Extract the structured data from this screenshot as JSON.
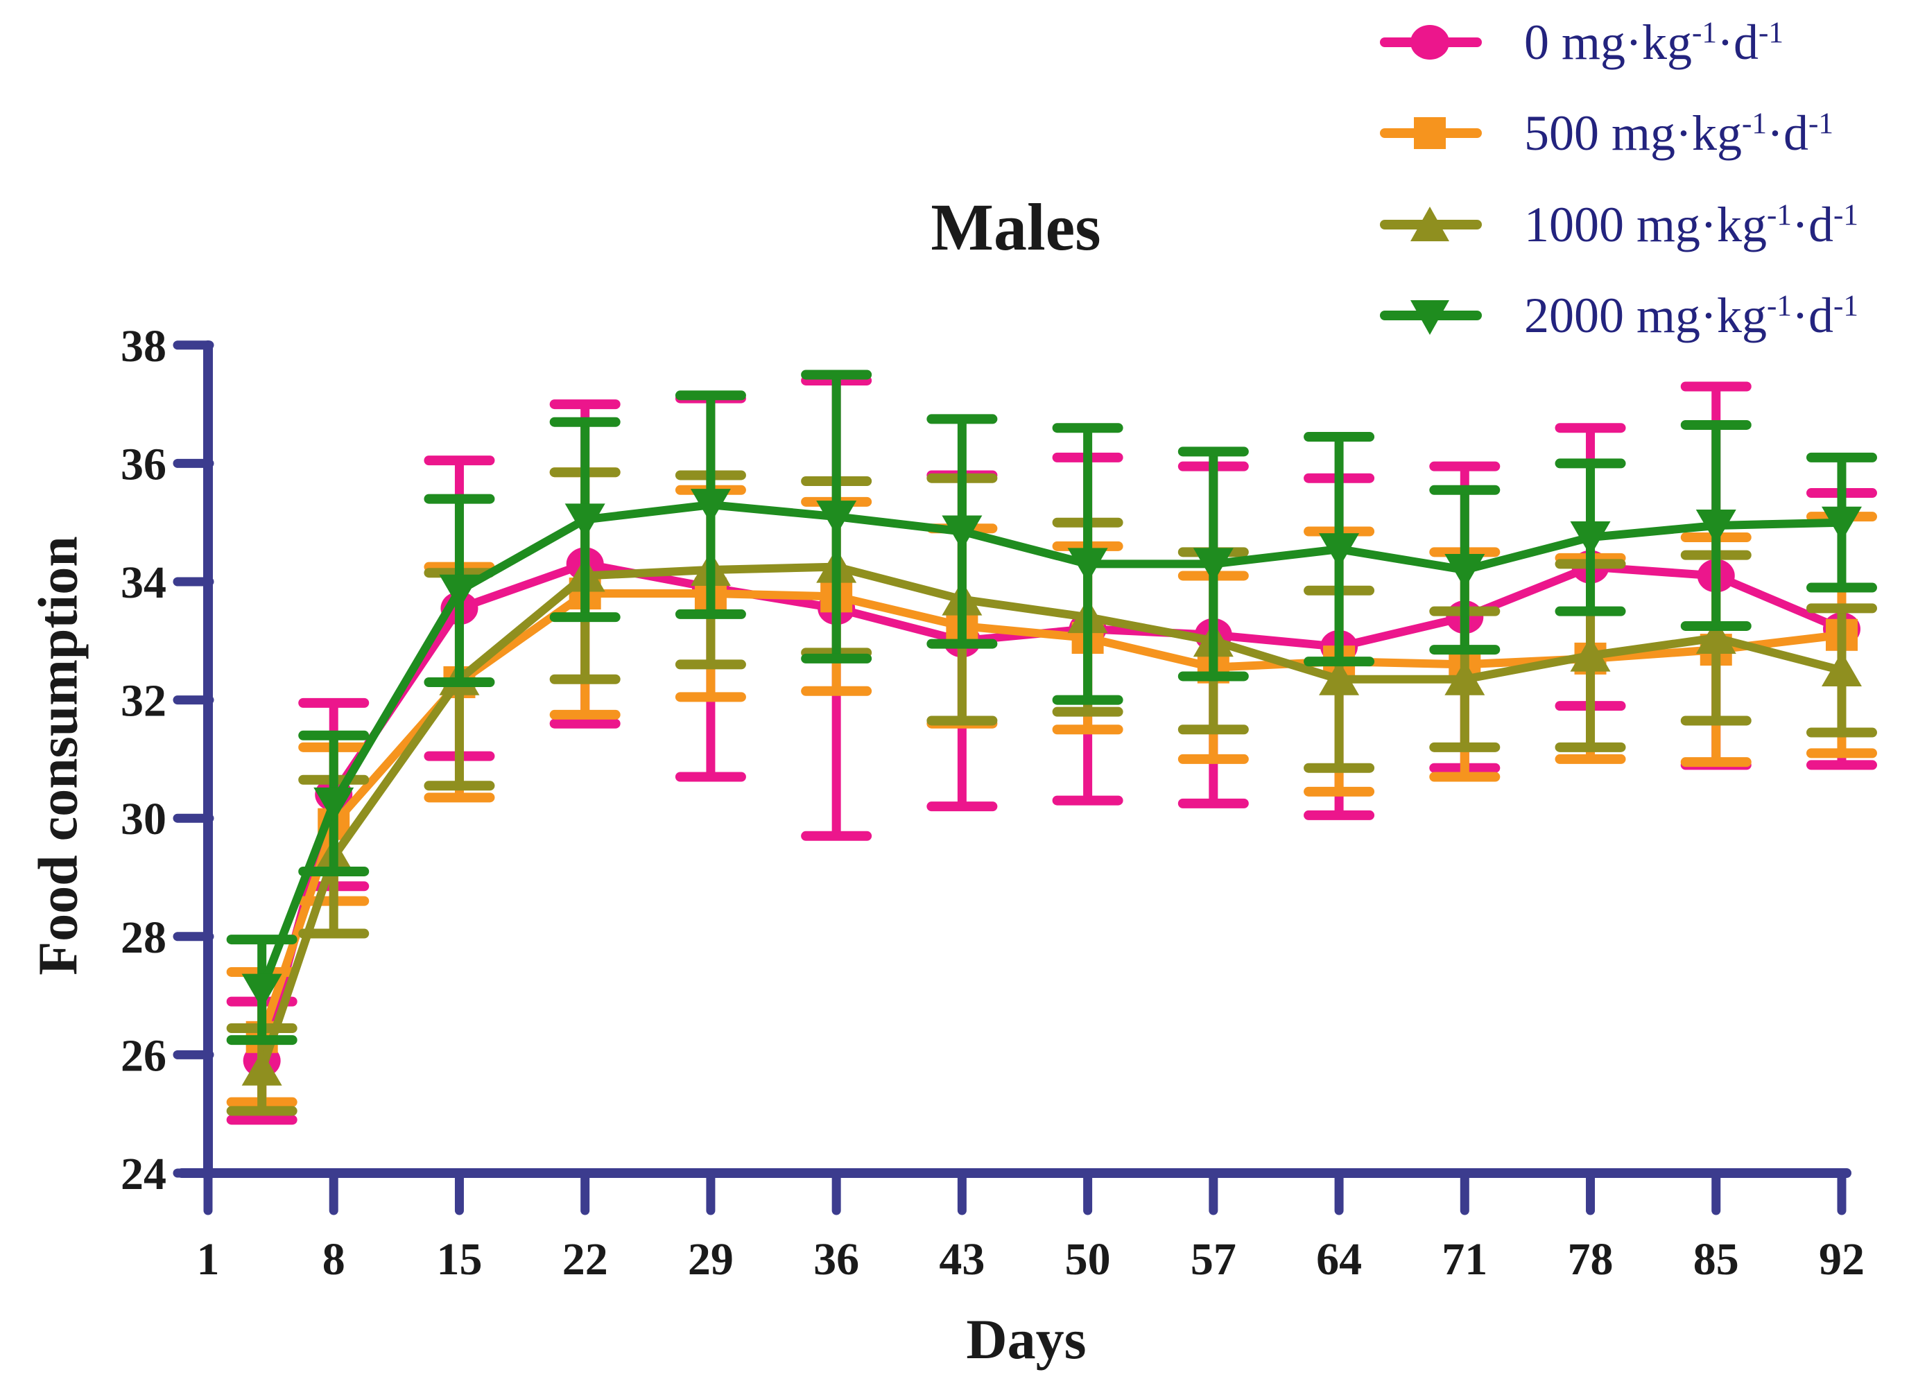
{
  "title": "Males",
  "colors": {
    "axis": "#3c3c8e",
    "tick_text": "#1a1a1a",
    "title_text": "#1a1a1a",
    "legend_text": "#23237e",
    "background": "#ffffff",
    "series_pink": "#ec168c",
    "series_orange": "#f6941e",
    "series_olive": "#8f8f1f",
    "series_green": "#1f8c1f"
  },
  "chart_data": {
    "type": "line",
    "title": "Males",
    "xlabel": "Days",
    "ylabel": "Food consumption",
    "x": [
      4,
      8,
      15,
      22,
      29,
      36,
      43,
      50,
      57,
      64,
      71,
      78,
      85,
      92
    ],
    "x_tick_labels": [
      1,
      8,
      15,
      22,
      29,
      36,
      43,
      50,
      57,
      64,
      71,
      78,
      85,
      92
    ],
    "y_ticks": [
      24,
      26,
      28,
      30,
      32,
      34,
      36,
      38
    ],
    "ylim": [
      24,
      38
    ],
    "xlim": [
      1,
      93
    ],
    "grid": false,
    "legend_position": "top-right",
    "error_bars": true,
    "series": [
      {
        "name": "0 mg·kg⁻¹·d⁻¹",
        "dose": "0",
        "marker": "circle",
        "color": "#ec168c",
        "values": [
          25.9,
          30.4,
          33.55,
          34.3,
          33.9,
          33.55,
          33.0,
          33.2,
          33.1,
          32.9,
          33.4,
          34.25,
          34.1,
          33.2
        ],
        "err": [
          1.0,
          1.55,
          2.5,
          2.7,
          3.2,
          3.85,
          2.8,
          2.9,
          2.85,
          2.85,
          2.55,
          2.35,
          3.2,
          2.3
        ]
      },
      {
        "name": "500 mg·kg⁻¹·d⁻¹",
        "dose": "500",
        "marker": "square",
        "color": "#f6941e",
        "values": [
          26.3,
          29.9,
          32.3,
          33.8,
          33.8,
          33.75,
          33.25,
          33.05,
          32.55,
          32.65,
          32.6,
          32.7,
          32.85,
          33.1
        ],
        "err": [
          1.1,
          1.3,
          1.95,
          2.05,
          1.75,
          1.6,
          1.65,
          1.55,
          1.55,
          2.2,
          1.9,
          1.7,
          1.9,
          2.0
        ]
      },
      {
        "name": "1000 mg·kg⁻¹·d⁻¹",
        "dose": "1000",
        "marker": "triangle-up",
        "color": "#8f8f1f",
        "values": [
          25.75,
          29.35,
          32.35,
          34.1,
          34.2,
          34.25,
          33.7,
          33.4,
          33.0,
          32.35,
          32.35,
          32.75,
          33.05,
          32.5
        ],
        "err": [
          0.7,
          1.3,
          1.8,
          1.75,
          1.6,
          1.45,
          2.05,
          1.6,
          1.5,
          1.5,
          1.15,
          1.55,
          1.4,
          1.05
        ]
      },
      {
        "name": "2000 mg·kg⁻¹·d⁻¹",
        "dose": "2000",
        "marker": "triangle-down",
        "color": "#1f8c1f",
        "values": [
          27.1,
          30.25,
          33.85,
          35.05,
          35.3,
          35.1,
          34.85,
          34.3,
          34.3,
          34.55,
          34.2,
          34.75,
          34.95,
          35.0
        ],
        "err": [
          0.85,
          1.15,
          1.55,
          1.65,
          1.85,
          2.4,
          1.9,
          2.3,
          1.9,
          1.9,
          1.35,
          1.25,
          1.7,
          1.1
        ]
      }
    ]
  },
  "legend": {
    "entries": [
      {
        "prefix": "0 mg·kg",
        "sup1": "-1",
        "mid": "·d",
        "sup2": "-1"
      },
      {
        "prefix": "500 mg·kg",
        "sup1": "-1",
        "mid": "·d",
        "sup2": "-1"
      },
      {
        "prefix": "1000 mg·kg",
        "sup1": "-1",
        "mid": "·d",
        "sup2": "-1"
      },
      {
        "prefix": "2000 mg·kg",
        "sup1": "-1",
        "mid": "·d",
        "sup2": "-1"
      }
    ]
  }
}
